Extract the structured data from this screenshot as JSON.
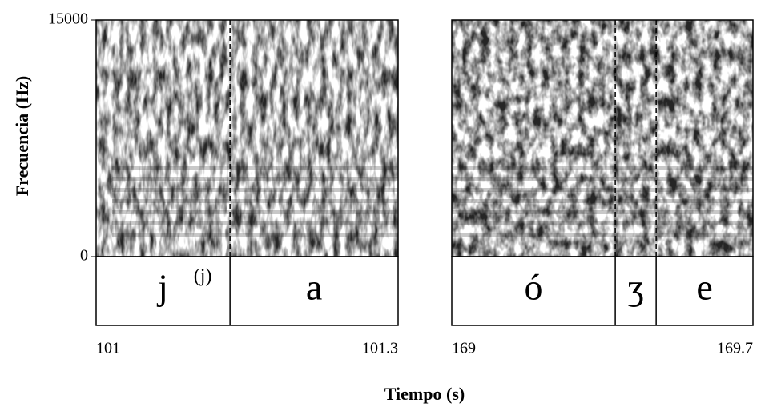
{
  "chart_data": [
    {
      "type": "spectrogram",
      "ylabel": "Frecuencia (Hz)",
      "xlabel": "Tiempo (s)",
      "xlim": [
        101,
        101.3
      ],
      "xticks": [
        101,
        101.3
      ],
      "ylim": [
        0,
        15000
      ],
      "yticks": [
        0,
        15000
      ],
      "boundaries": [
        101.133
      ],
      "segments": [
        "j",
        "a"
      ],
      "annotation": "(j)"
    },
    {
      "type": "spectrogram",
      "xlim": [
        169,
        169.7
      ],
      "xticks": [
        169,
        169.7
      ],
      "ylim": [
        0,
        15000
      ],
      "boundaries": [
        169.38,
        169.475
      ],
      "segments": [
        "ó",
        "ʒ",
        "e"
      ]
    }
  ]
}
